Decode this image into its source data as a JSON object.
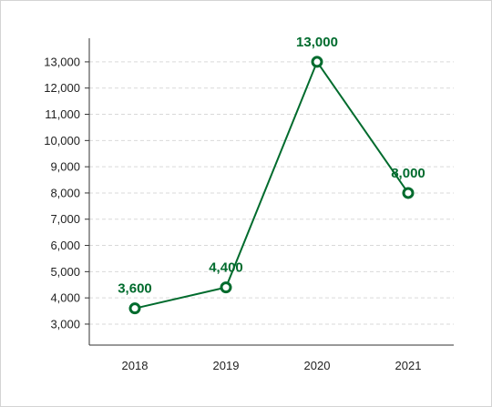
{
  "chart_data": {
    "type": "line",
    "categories": [
      "2018",
      "2019",
      "2020",
      "2021"
    ],
    "series": [
      {
        "values": [
          3600,
          4400,
          13000,
          8000
        ]
      }
    ],
    "data_labels": [
      "3,600",
      "4,400",
      "13,000",
      "8,000"
    ],
    "y_ticks": [
      3000,
      4000,
      5000,
      6000,
      7000,
      8000,
      9000,
      10000,
      11000,
      12000,
      13000
    ],
    "y_tick_labels": [
      "3,000",
      "4,000",
      "5,000",
      "6,000",
      "7,000",
      "8,000",
      "9,000",
      "10,000",
      "11,000",
      "12,000",
      "13,000"
    ],
    "ylim": [
      2200,
      13900
    ],
    "grid": true,
    "line_color": "#006b2d",
    "grid_color": "#d9d9d9",
    "title": "",
    "xlabel": "",
    "ylabel": ""
  }
}
